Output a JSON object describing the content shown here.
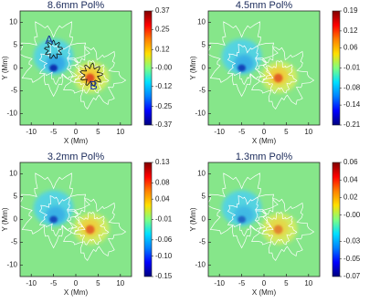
{
  "colormap": [
    "#00007f",
    "#0000ff",
    "#0080ff",
    "#00e0ff",
    "#80ff80",
    "#ffe000",
    "#ff8000",
    "#ff0000",
    "#7f0000"
  ],
  "chart_data": [
    {
      "type": "image",
      "title": "8.6mm Pol%",
      "xlabel": "X (Mm)",
      "ylabel": "Y (Mm)",
      "xlim": [
        -12.5,
        12.5
      ],
      "ylim": [
        -12.5,
        12.5
      ],
      "xticks": [
        -10,
        -5,
        0,
        5,
        10
      ],
      "yticks": [
        -10,
        -5,
        0,
        5,
        10
      ],
      "zlim": [
        -0.37,
        0.37
      ],
      "zticks": [
        -0.37,
        -0.25,
        -0.12,
        {
          "value": 0,
          "label": "-0.00"
        },
        0.12,
        0.25,
        0.37
      ],
      "annotations": [
        "A",
        "B"
      ]
    },
    {
      "type": "image",
      "title": "4.5mm Pol%",
      "xlabel": "X (Mm)",
      "ylabel": "Y (Mm)",
      "xlim": [
        -12.5,
        12.5
      ],
      "ylim": [
        -12.5,
        12.5
      ],
      "xticks": [
        -10,
        -5,
        0,
        5,
        10
      ],
      "yticks": [
        -10,
        -5,
        0,
        5,
        10
      ],
      "zlim": [
        -0.21,
        0.19
      ],
      "zticks": [
        -0.21,
        -0.14,
        -0.08,
        -0.01,
        0.06,
        0.12,
        0.19
      ]
    },
    {
      "type": "image",
      "title": "3.2mm Pol%",
      "xlabel": "X (Mm)",
      "ylabel": "Y (Mm)",
      "xlim": [
        -12.5,
        12.5
      ],
      "ylim": [
        -12.5,
        12.5
      ],
      "xticks": [
        -10,
        -5,
        0,
        5,
        10
      ],
      "yticks": [
        -10,
        -5,
        0,
        5,
        10
      ],
      "zlim": [
        -0.15,
        0.13
      ],
      "zticks": [
        -0.15,
        {
          "value": -0.1,
          "label": "-0.10"
        },
        -0.06,
        -0.01,
        0.04,
        0.08,
        0.13
      ]
    },
    {
      "type": "image",
      "title": "1.3mm Pol%",
      "xlabel": "X (Mm)",
      "ylabel": "Y (Mm)",
      "xlim": [
        -12.5,
        12.5
      ],
      "ylim": [
        -12.5,
        12.5
      ],
      "xticks": [
        -10,
        -5,
        0,
        5,
        10
      ],
      "yticks": [
        -10,
        -5,
        0,
        5,
        10
      ],
      "zlim": [
        -0.07,
        0.06
      ],
      "zticks": [
        -0.07,
        -0.05,
        -0.03,
        {
          "value": 0,
          "label": "-0.00"
        },
        0.02,
        0.04,
        0.06
      ]
    }
  ]
}
